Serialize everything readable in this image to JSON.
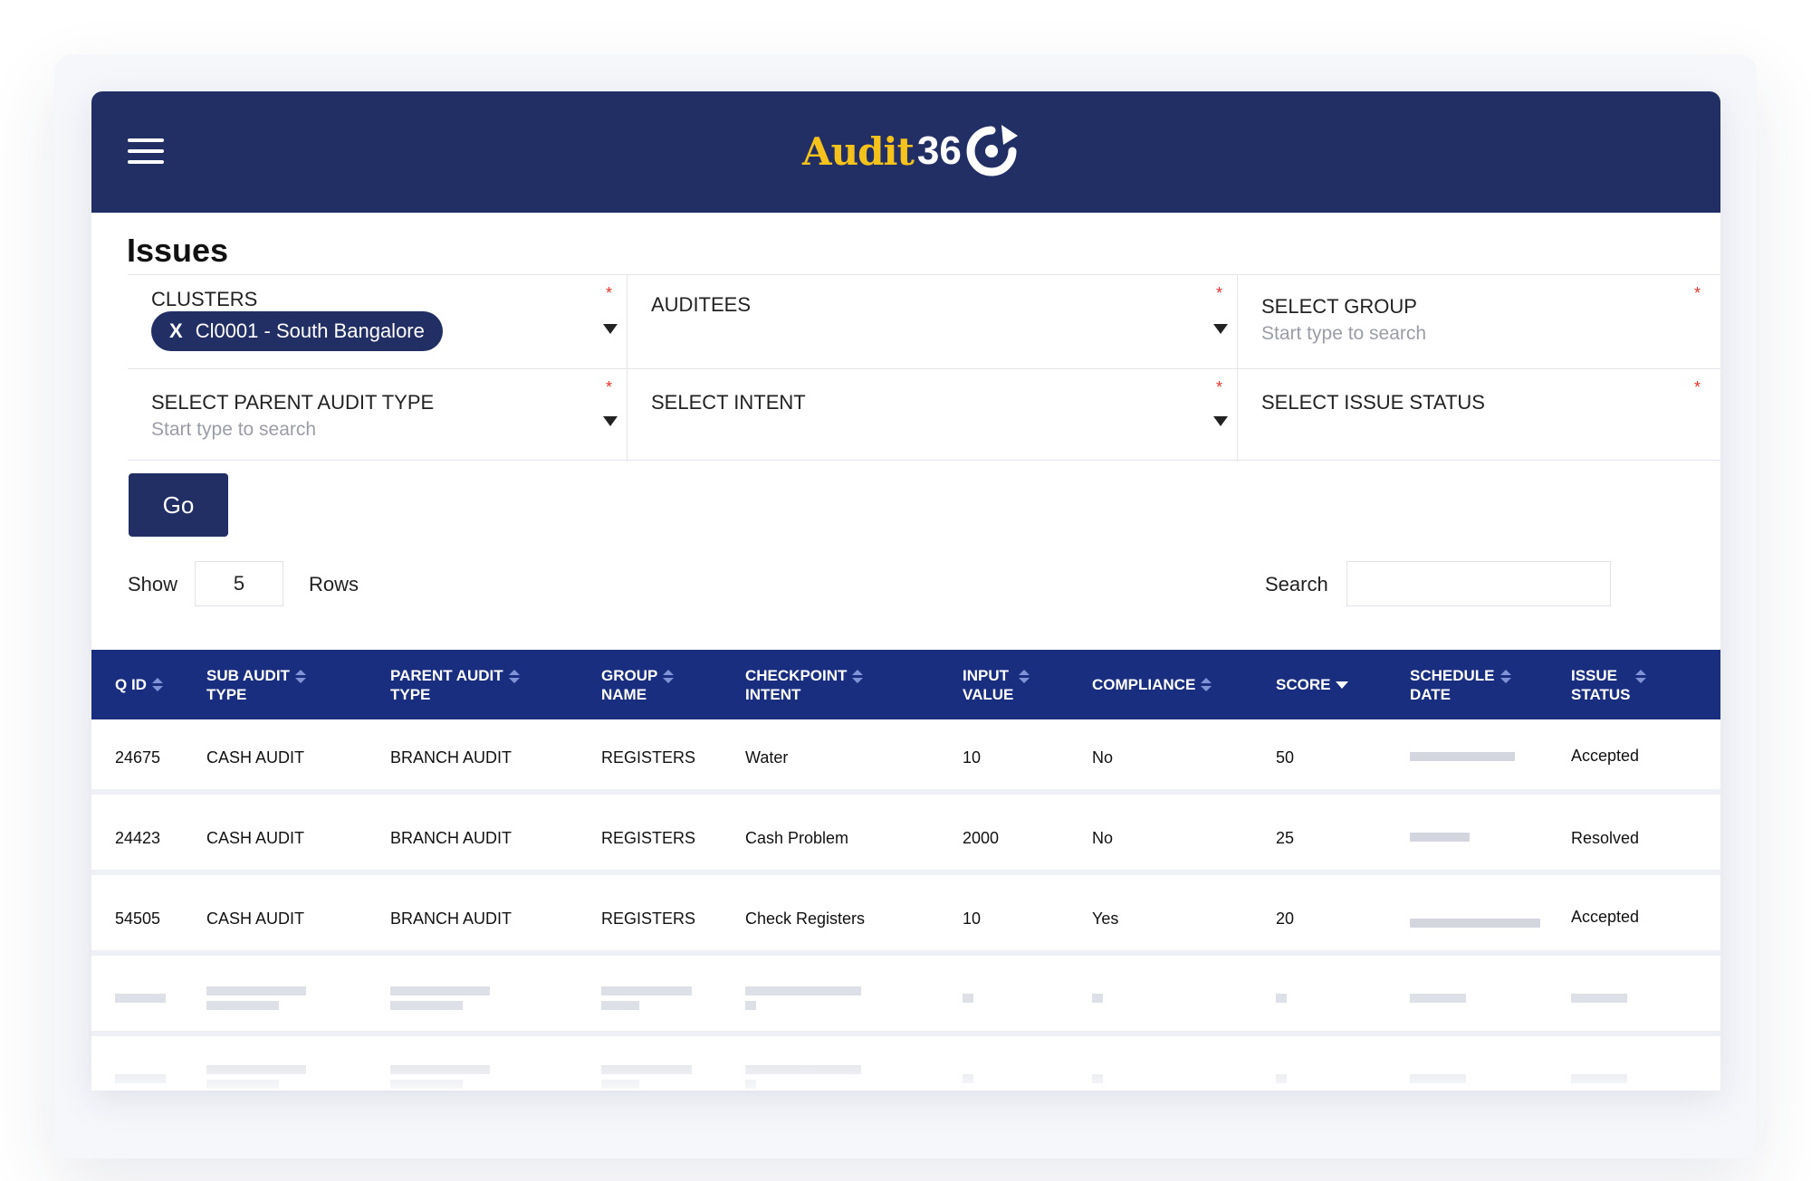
{
  "app": {
    "logo_text": "Audit",
    "logo_number": "36",
    "brand_colors": {
      "header": "#222f64",
      "logo_yellow": "#f5c21b",
      "table_header": "#1a2e80",
      "required": "#e5342f"
    }
  },
  "page": {
    "title": "Issues"
  },
  "filters": {
    "clusters": {
      "label": "CLUSTERS",
      "chip": "Cl0001 - South Bangalore",
      "chip_remove": "X",
      "required": "*"
    },
    "auditees": {
      "label": "AUDITEES",
      "required": "*"
    },
    "group": {
      "label": "SELECT GROUP",
      "placeholder": "Start type to search",
      "required": "*"
    },
    "parent_audit_type": {
      "label": "SELECT PARENT AUDIT TYPE",
      "placeholder": "Start type to search",
      "required": "*"
    },
    "intent": {
      "label": "SELECT INTENT",
      "required": "*"
    },
    "issue_status": {
      "label": "SELECT ISSUE STATUS",
      "required": "*"
    }
  },
  "actions": {
    "go_label": "Go"
  },
  "pagination": {
    "show_label": "Show",
    "rows_value": "5",
    "rows_label": "Rows"
  },
  "search": {
    "label": "Search",
    "value": ""
  },
  "table": {
    "columns": [
      {
        "line1": "Q ID",
        "line2": "",
        "sort": "both"
      },
      {
        "line1": "SUB AUDIT",
        "line2": "TYPE",
        "sort": "both"
      },
      {
        "line1": "PARENT AUDIT",
        "line2": "TYPE",
        "sort": "both"
      },
      {
        "line1": "GROUP",
        "line2": "NAME",
        "sort": "both"
      },
      {
        "line1": "CHECKPOINT",
        "line2": "INTENT",
        "sort": "both"
      },
      {
        "line1": "INPUT",
        "line2": "VALUE",
        "sort": "both"
      },
      {
        "line1": "COMPLIANCE",
        "line2": "",
        "sort": "both"
      },
      {
        "line1": "SCORE",
        "line2": "",
        "sort": "desc"
      },
      {
        "line1": "SCHEDULE",
        "line2": "DATE",
        "sort": "both"
      },
      {
        "line1": "ISSUE",
        "line2": "STATUS",
        "sort": "both"
      }
    ],
    "rows": [
      {
        "q_id": "24675",
        "sub_audit_type": "CASH AUDIT",
        "parent_audit_type": "BRANCH AUDIT",
        "group_name": "REGISTERS",
        "checkpoint_intent": "Water",
        "input_value": "10",
        "compliance": "No",
        "score": "50",
        "issue_status": "Accepted"
      },
      {
        "q_id": "24423",
        "sub_audit_type": "CASH AUDIT",
        "parent_audit_type": "BRANCH AUDIT",
        "group_name": "REGISTERS",
        "checkpoint_intent": "Cash Problem",
        "input_value": "2000",
        "compliance": "No",
        "score": "25",
        "issue_status": "Resolved"
      },
      {
        "q_id": "54505",
        "sub_audit_type": "CASH AUDIT",
        "parent_audit_type": "BRANCH AUDIT",
        "group_name": "REGISTERS",
        "checkpoint_intent": "Check Registers",
        "input_value": "10",
        "compliance": "Yes",
        "score": "20",
        "issue_status": "Accepted"
      }
    ]
  }
}
